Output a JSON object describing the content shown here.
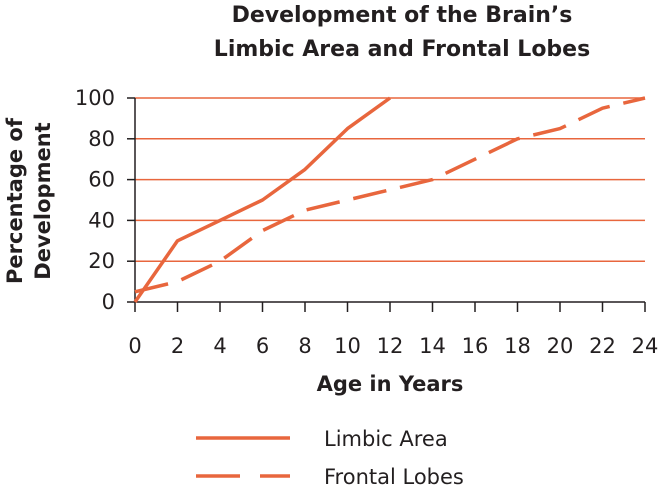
{
  "chart_data": {
    "type": "line",
    "title_lines": [
      "Development of the Brain’s",
      "Limbic Area and Frontal Lobes"
    ],
    "xlabel": "Age in Years",
    "ylabel_lines": [
      "Percentage of",
      "Development"
    ],
    "xlim": [
      0,
      24
    ],
    "ylim": [
      0,
      100
    ],
    "xticks": [
      0,
      2,
      4,
      6,
      8,
      10,
      12,
      14,
      16,
      18,
      20,
      22,
      24
    ],
    "yticks": [
      0,
      20,
      40,
      60,
      80,
      100
    ],
    "grid": "horizontal",
    "legend_position": "bottom",
    "line_color": "#e8663d",
    "grid_color": "#e8663d",
    "series": [
      {
        "name": "Limbic Area",
        "style": "solid",
        "x": [
          0,
          2,
          4,
          6,
          8,
          10,
          12
        ],
        "y": [
          0,
          30,
          40,
          50,
          65,
          85,
          100
        ]
      },
      {
        "name": "Frontal Lobes",
        "style": "dashed",
        "x": [
          0,
          2,
          4,
          6,
          8,
          10,
          12,
          14,
          16,
          18,
          20,
          22,
          24
        ],
        "y": [
          5,
          10,
          20,
          35,
          45,
          50,
          55,
          60,
          70,
          80,
          85,
          95,
          100
        ]
      }
    ]
  }
}
